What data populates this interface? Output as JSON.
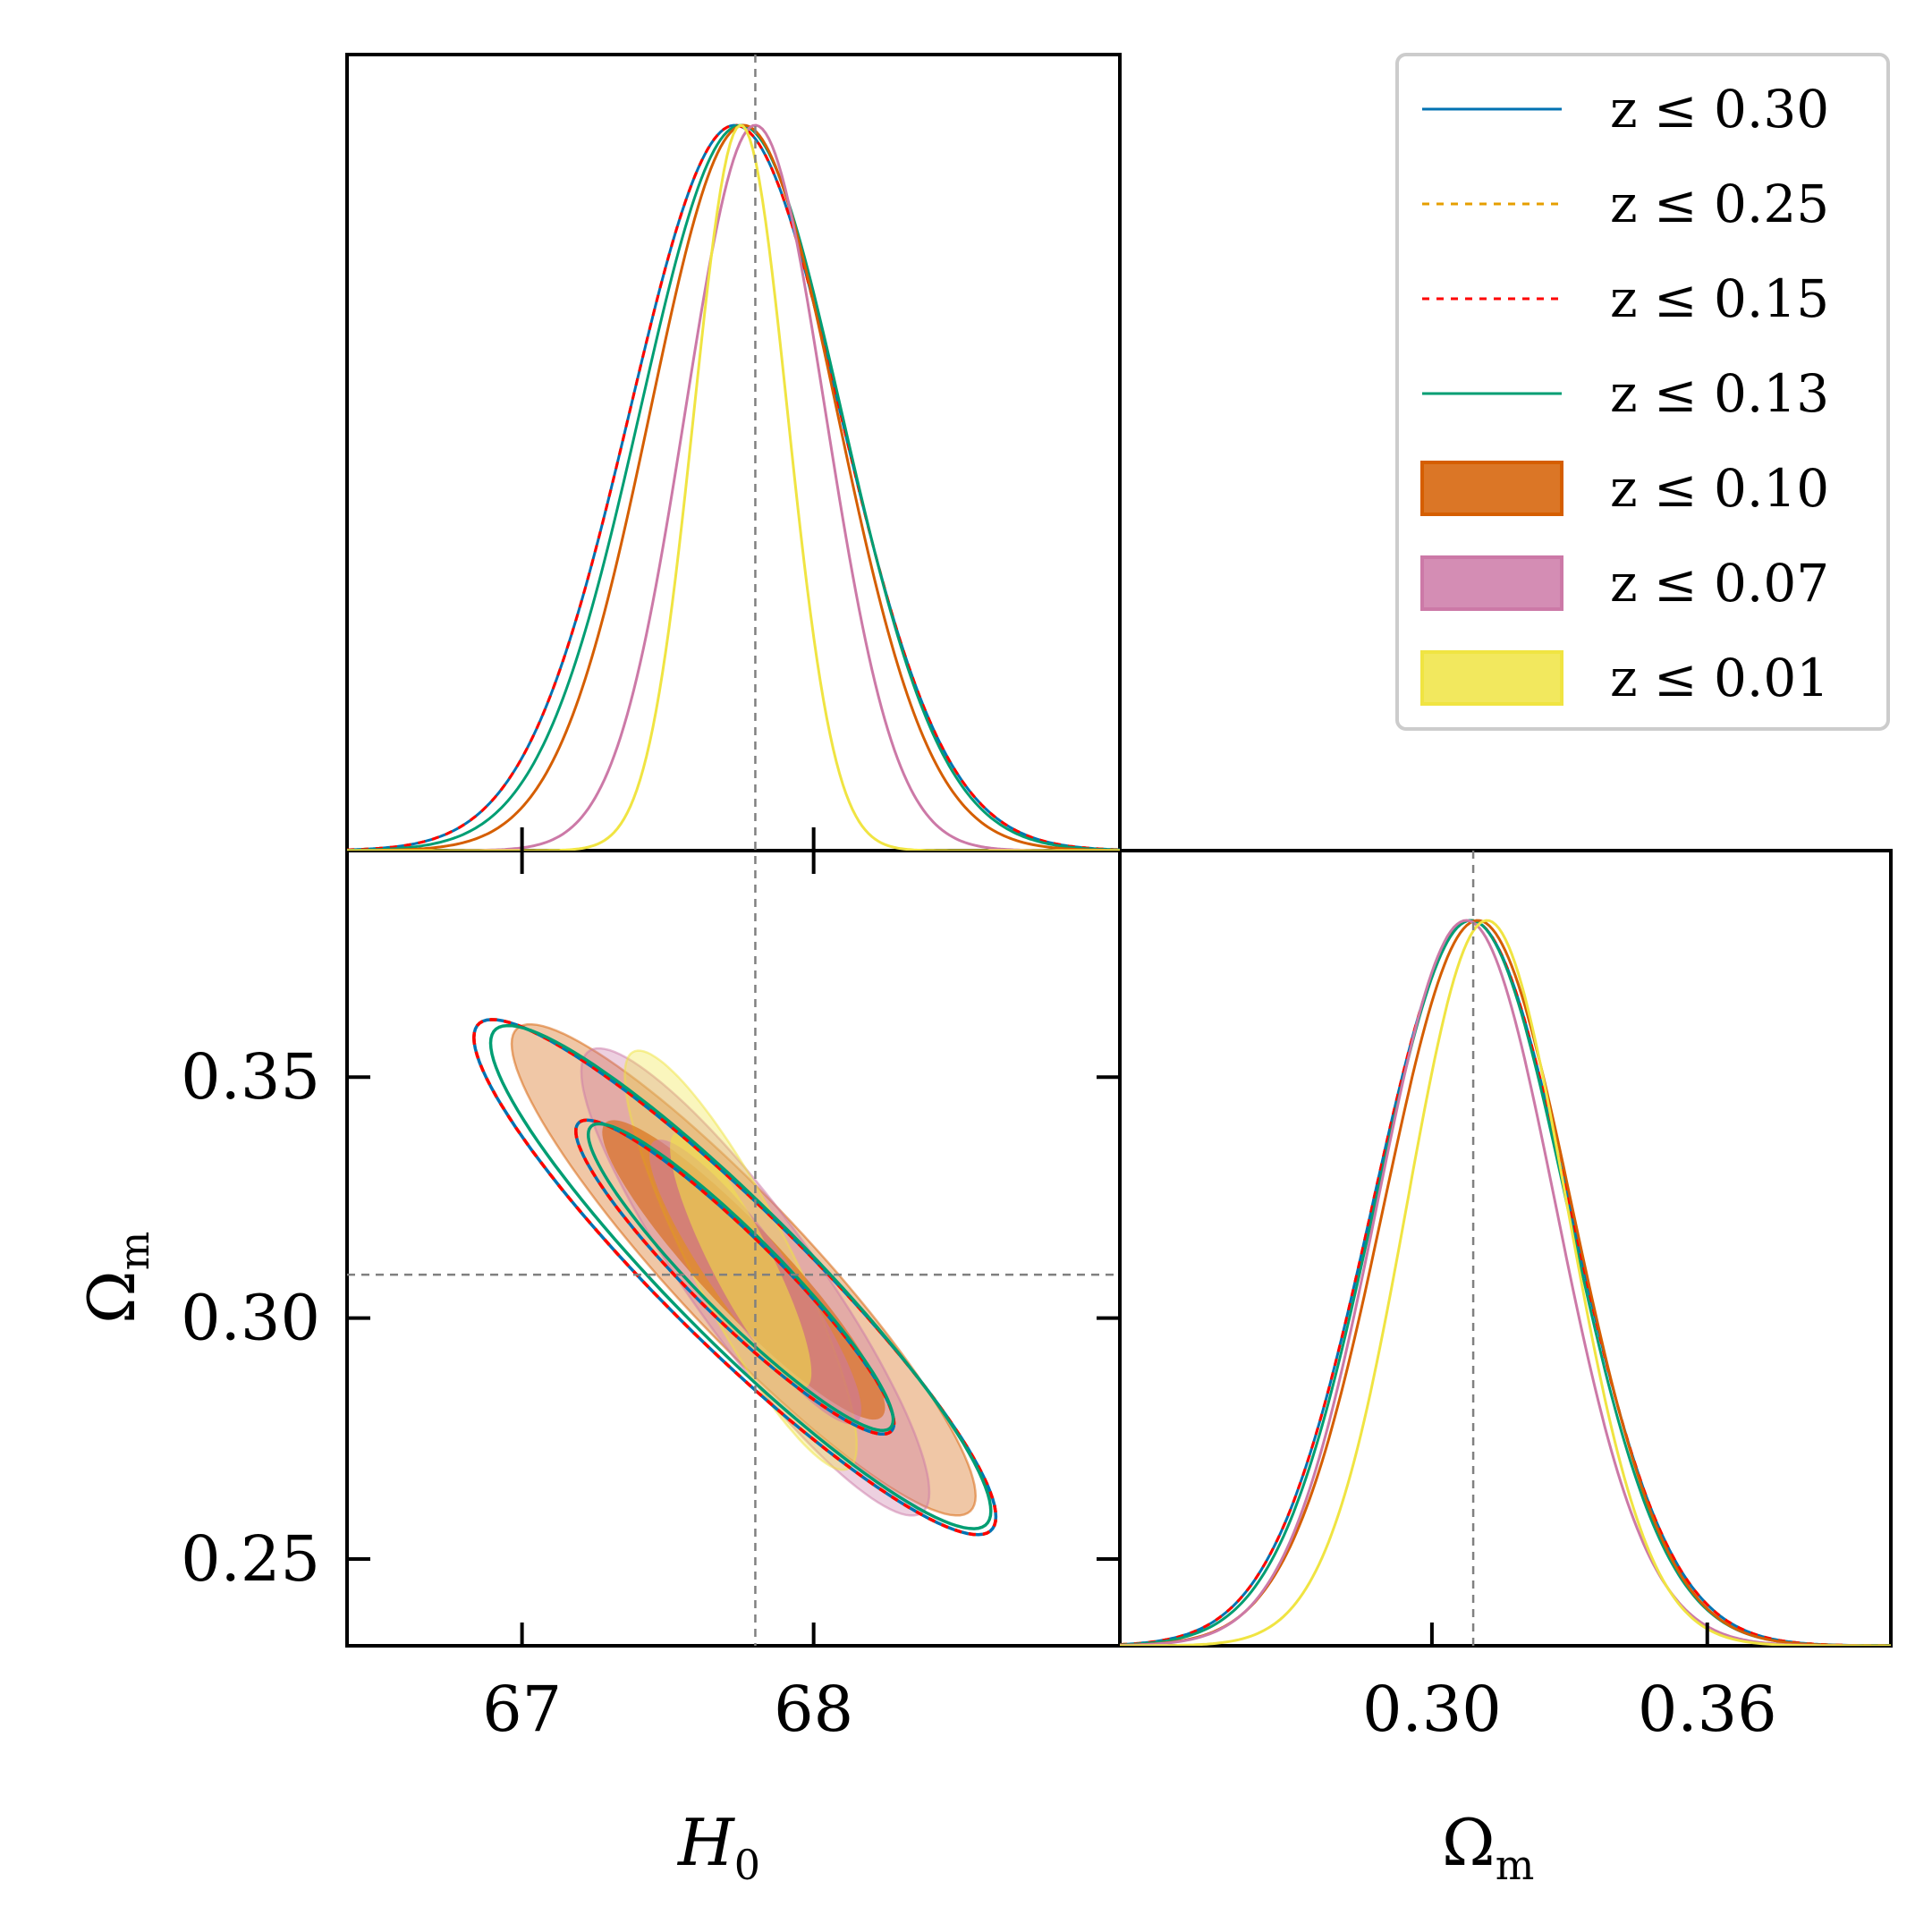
{
  "chart_data": {
    "type": "corner",
    "parameters": [
      {
        "name": "H0",
        "symbol": "H",
        "subscript": "0",
        "range": [
          66.4,
          69.05
        ],
        "ticks": [
          67,
          68
        ],
        "tick_labels": [
          "67",
          "68"
        ],
        "fiducial": 67.8
      },
      {
        "name": "Omega_m",
        "symbol": "Ω",
        "subscript": "m",
        "range": [
          0.232,
          0.397
        ],
        "ticks": [
          0.25,
          0.3,
          0.35
        ],
        "tick_labels": [
          "0.25",
          "0.30",
          "0.35"
        ],
        "diag_ticks": [
          0.3,
          0.36
        ],
        "diag_tick_labels": [
          "0.30",
          "0.36"
        ],
        "diag_range": [
          0.232,
          0.4
        ],
        "fiducial": 0.309
      }
    ],
    "x_label_h0": {
      "symbol": "H",
      "sub": "0"
    },
    "x_label_om": {
      "symbol": "Ω",
      "sub": "m"
    },
    "y_label_om": {
      "symbol": "Ω",
      "sub": "m"
    },
    "legend": [
      {
        "label": "z ≤ 0.30",
        "color": "#0072b2",
        "style": "solid-line"
      },
      {
        "label": "z ≤ 0.25",
        "color": "#e69f00",
        "style": "dashed-line"
      },
      {
        "label": "z ≤ 0.15",
        "color": "#ff0000",
        "style": "dashed-line"
      },
      {
        "label": "z ≤ 0.13",
        "color": "#009e73",
        "style": "solid-line"
      },
      {
        "label": "z ≤ 0.10",
        "color": "#d55e00",
        "style": "filled"
      },
      {
        "label": "z ≤ 0.07",
        "color": "#cc79a7",
        "style": "filled"
      },
      {
        "label": "z ≤ 0.01",
        "color": "#f0e442",
        "style": "filled"
      }
    ],
    "series": [
      {
        "name": "z ≤ 0.30",
        "color": "#0072b2",
        "dash": "none",
        "filled": false,
        "h0_mean": 67.73,
        "h0_sigma": 0.36,
        "om_mean": 0.3085,
        "om_sigma": 0.0215,
        "rho": -0.93
      },
      {
        "name": "z ≤ 0.25",
        "color": "#e69f00",
        "dash": "8,8",
        "filled": false,
        "h0_mean": 67.73,
        "h0_sigma": 0.36,
        "om_mean": 0.3085,
        "om_sigma": 0.0215,
        "rho": -0.93
      },
      {
        "name": "z ≤ 0.15",
        "color": "#ff0000",
        "dash": "8,8",
        "filled": false,
        "h0_mean": 67.73,
        "h0_sigma": 0.36,
        "om_mean": 0.3085,
        "om_sigma": 0.0215,
        "rho": -0.93
      },
      {
        "name": "z ≤ 0.13",
        "color": "#009e73",
        "dash": "none",
        "filled": false,
        "h0_mean": 67.75,
        "h0_sigma": 0.345,
        "om_mean": 0.3085,
        "om_sigma": 0.021,
        "rho": -0.93
      },
      {
        "name": "z ≤ 0.10",
        "color": "#d55e00",
        "dash": "none",
        "filled": true,
        "h0_mean": 67.76,
        "h0_sigma": 0.32,
        "om_mean": 0.31,
        "om_sigma": 0.0205,
        "rho": -0.92
      },
      {
        "name": "z ≤ 0.07",
        "color": "#cc79a7",
        "dash": "none",
        "filled": true,
        "h0_mean": 67.8,
        "h0_sigma": 0.24,
        "om_mean": 0.3075,
        "om_sigma": 0.0195,
        "rho": -0.9
      },
      {
        "name": "z ≤ 0.01",
        "color": "#f0e442",
        "dash": "none",
        "filled": true,
        "h0_mean": 67.75,
        "h0_sigma": 0.16,
        "om_mean": 0.312,
        "om_sigma": 0.0175,
        "rho": -0.88
      }
    ]
  }
}
